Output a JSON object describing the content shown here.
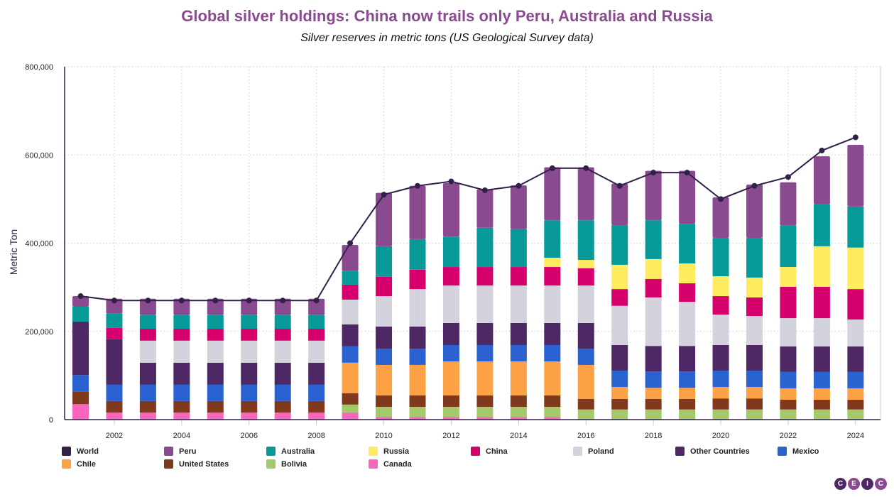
{
  "chart_data": {
    "type": "bar",
    "stacked": true,
    "title": "Global silver holdings: China now trails only Peru, Australia and Russia",
    "subtitle": "Silver reserves in metric tons (US Geological Survey data)",
    "xlabel": "",
    "ylabel": "Metric Ton",
    "ylim": [
      0,
      800000
    ],
    "yticks": [
      "0",
      "200,000",
      "400,000",
      "600,000",
      "800,000"
    ],
    "xticks": [
      "2002",
      "2004",
      "2006",
      "2008",
      "2010",
      "2012",
      "2014",
      "2016",
      "2018",
      "2020",
      "2022",
      "2024"
    ],
    "grid": true,
    "legend_position": "bottom",
    "categories": [
      "2001",
      "2002",
      "2003",
      "2004",
      "2005",
      "2006",
      "2007",
      "2008",
      "2009",
      "2010",
      "2011",
      "2012",
      "2013",
      "2014",
      "2015",
      "2016",
      "2017",
      "2018",
      "2019",
      "2020",
      "2021",
      "2022",
      "2023",
      "2024"
    ],
    "series": [
      {
        "name": "Canada",
        "color": "#f966bc",
        "values": [
          35000,
          16000,
          16000,
          16000,
          16000,
          16000,
          16000,
          16000,
          16000,
          6000,
          6000,
          6000,
          6000,
          6000,
          6000,
          0,
          0,
          0,
          0,
          0,
          0,
          0,
          0,
          0
        ]
      },
      {
        "name": "Bolivia",
        "color": "#a3c96b",
        "values": [
          0,
          0,
          0,
          0,
          0,
          0,
          0,
          0,
          18000,
          23000,
          23000,
          23000,
          23000,
          23000,
          23000,
          23000,
          23000,
          23000,
          23000,
          23000,
          23000,
          23000,
          23000,
          23000
        ]
      },
      {
        "name": "United States",
        "color": "#80391c",
        "values": [
          29000,
          26000,
          26000,
          26000,
          26000,
          26000,
          26000,
          26000,
          26000,
          26000,
          26000,
          26000,
          26000,
          26000,
          26000,
          24000,
          24000,
          24000,
          24000,
          25000,
          25000,
          22000,
          22000,
          22000
        ]
      },
      {
        "name": "Chile",
        "color": "#fca245",
        "values": [
          0,
          0,
          0,
          0,
          0,
          0,
          0,
          0,
          69000,
          69000,
          69000,
          77000,
          77000,
          77000,
          77000,
          77000,
          27000,
          25000,
          25000,
          26000,
          26000,
          26000,
          26000,
          26000
        ]
      },
      {
        "name": "Mexico",
        "color": "#2b62d1",
        "values": [
          37000,
          37000,
          37000,
          37000,
          37000,
          37000,
          37000,
          37000,
          37000,
          37000,
          37000,
          37000,
          37000,
          37000,
          37000,
          37000,
          37000,
          37000,
          37000,
          37000,
          37000,
          37000,
          37000,
          37000
        ]
      },
      {
        "name": "Other Countries",
        "color": "#4d2864",
        "values": [
          121000,
          103000,
          50000,
          50000,
          50000,
          50000,
          50000,
          50000,
          50000,
          50000,
          50000,
          50000,
          50000,
          50000,
          50000,
          58000,
          58000,
          58000,
          58000,
          58000,
          58000,
          58000,
          58000,
          58000
        ]
      },
      {
        "name": "Poland",
        "color": "#d4d2dc",
        "values": [
          0,
          0,
          50000,
          50000,
          50000,
          50000,
          50000,
          50000,
          56000,
          69000,
          85000,
          85000,
          85000,
          85000,
          85000,
          85000,
          89000,
          110000,
          100000,
          69000,
          66000,
          64000,
          64000,
          61000
        ]
      },
      {
        "name": "China",
        "color": "#d6006d",
        "values": [
          0,
          26000,
          27000,
          27000,
          27000,
          27000,
          27000,
          27000,
          34000,
          44000,
          44000,
          42000,
          42000,
          42000,
          42000,
          39000,
          38000,
          42000,
          42000,
          42000,
          42000,
          71000,
          71000,
          69000
        ]
      },
      {
        "name": "Russia",
        "color": "#ffea60",
        "values": [
          0,
          0,
          0,
          0,
          0,
          0,
          0,
          0,
          0,
          0,
          0,
          0,
          0,
          0,
          21000,
          19000,
          55000,
          45000,
          45000,
          45000,
          45000,
          45000,
          92000,
          94000
        ]
      },
      {
        "name": "Australia",
        "color": "#089a98",
        "values": [
          34000,
          32000,
          31000,
          31000,
          31000,
          31000,
          31000,
          31000,
          31000,
          69000,
          69000,
          69000,
          89000,
          86000,
          85000,
          90000,
          90000,
          88000,
          90000,
          87000,
          90000,
          94000,
          95000,
          93000
        ]
      },
      {
        "name": "Peru",
        "color": "#8a4a8f",
        "values": [
          24000,
          34000,
          37000,
          37000,
          37000,
          37000,
          37000,
          37000,
          59000,
          121000,
          121000,
          121000,
          87000,
          99000,
          120000,
          120000,
          94000,
          112000,
          120000,
          92000,
          121000,
          98000,
          109000,
          140000
        ]
      }
    ],
    "line_series": {
      "name": "World",
      "color": "#33204a",
      "values": [
        280000,
        270000,
        270000,
        270000,
        270000,
        270000,
        270000,
        270000,
        400000,
        510000,
        530000,
        540000,
        520000,
        530000,
        570000,
        570000,
        530000,
        560000,
        560000,
        500000,
        530000,
        550000,
        610000,
        640000
      ]
    }
  },
  "legend": [
    "World",
    "Peru",
    "Australia",
    "Russia",
    "China",
    "Poland",
    "Other Countries",
    "Mexico",
    "Chile",
    "United States",
    "Bolivia",
    "Canada"
  ],
  "logo": [
    "C",
    "E",
    "I",
    "C"
  ]
}
